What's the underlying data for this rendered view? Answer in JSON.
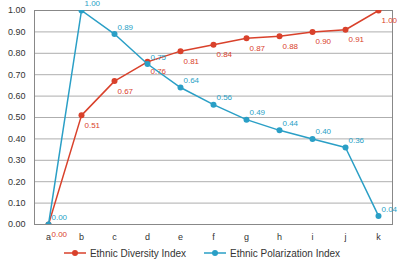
{
  "chart_data": {
    "type": "line",
    "categories": [
      "a",
      "b",
      "c",
      "d",
      "e",
      "f",
      "g",
      "h",
      "i",
      "j",
      "k"
    ],
    "series": [
      {
        "name": "Ethnic Diversity Index",
        "color": "#d9412b",
        "marker": "circle",
        "values": [
          0.0,
          0.51,
          0.67,
          0.76,
          0.81,
          0.84,
          0.87,
          0.88,
          0.9,
          0.91,
          1.0
        ],
        "value_labels": [
          "0.00",
          "0.51",
          "0.67",
          "0.76",
          "0.81",
          "0.84",
          "0.87",
          "0.88",
          "0.90",
          "0.91",
          "1.00"
        ]
      },
      {
        "name": "Ethnic Polarization Index",
        "color": "#2a9fc6",
        "marker": "circle",
        "values": [
          0.0,
          1.0,
          0.89,
          0.75,
          0.64,
          0.56,
          0.49,
          0.44,
          0.4,
          0.36,
          0.04
        ],
        "value_labels": [
          "0.00",
          "1.00",
          "0.89",
          "0.75",
          "0.64",
          "0.56",
          "0.49",
          "0.44",
          "0.40",
          "0.36",
          "0.04"
        ]
      }
    ],
    "ylim": [
      0,
      1
    ],
    "yticks": [
      {
        "value": 0,
        "label": "0.00"
      },
      {
        "value": 0.1,
        "label": "0.10"
      },
      {
        "value": 0.2,
        "label": "0.20"
      },
      {
        "value": 0.3,
        "label": "0.30"
      },
      {
        "value": 0.4,
        "label": "0.40"
      },
      {
        "value": 0.5,
        "label": "0.50"
      },
      {
        "value": 0.6,
        "label": "0.60"
      },
      {
        "value": 0.7,
        "label": "0.70"
      },
      {
        "value": 0.8,
        "label": "0.80"
      },
      {
        "value": 0.9,
        "label": "0.90"
      },
      {
        "value": 1,
        "label": "1.00"
      }
    ],
    "grid": true,
    "legend": "bottom",
    "data_labels": true
  }
}
